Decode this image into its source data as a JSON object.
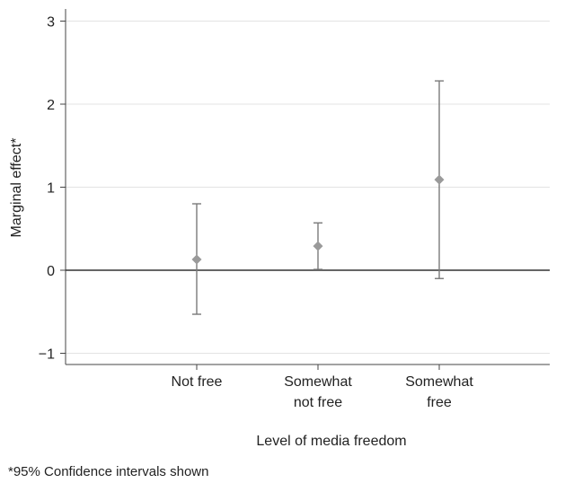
{
  "chart_data": {
    "type": "scatter",
    "subtype": "point-estimates-with-95-confidence-intervals",
    "categories": [
      [
        "Not free"
      ],
      [
        "Somewhat",
        "not free"
      ],
      [
        "Somewhat",
        "free"
      ]
    ],
    "points": [
      {
        "estimate": 0.13,
        "ci_low": -0.53,
        "ci_high": 0.8
      },
      {
        "estimate": 0.29,
        "ci_low": 0.01,
        "ci_high": 0.57
      },
      {
        "estimate": 1.09,
        "ci_low": -0.1,
        "ci_high": 2.28
      }
    ],
    "xlabel": "Level of media freedom",
    "ylabel": "Marginal effect*",
    "ylim": [
      -1.1,
      3.1
    ],
    "yticks": [
      -1,
      0,
      1,
      2,
      3
    ],
    "ytick_labels": [
      "−1",
      "0",
      "1",
      "2",
      "3"
    ],
    "reference_line": 0,
    "grid": true,
    "footnote": "*95% Confidence intervals shown",
    "colors": {
      "marker": "#9a9a9a",
      "interval": "#7a7a7a",
      "grid": "#e3e3e3",
      "axis": "#444444",
      "zero_line": "#333333"
    }
  }
}
